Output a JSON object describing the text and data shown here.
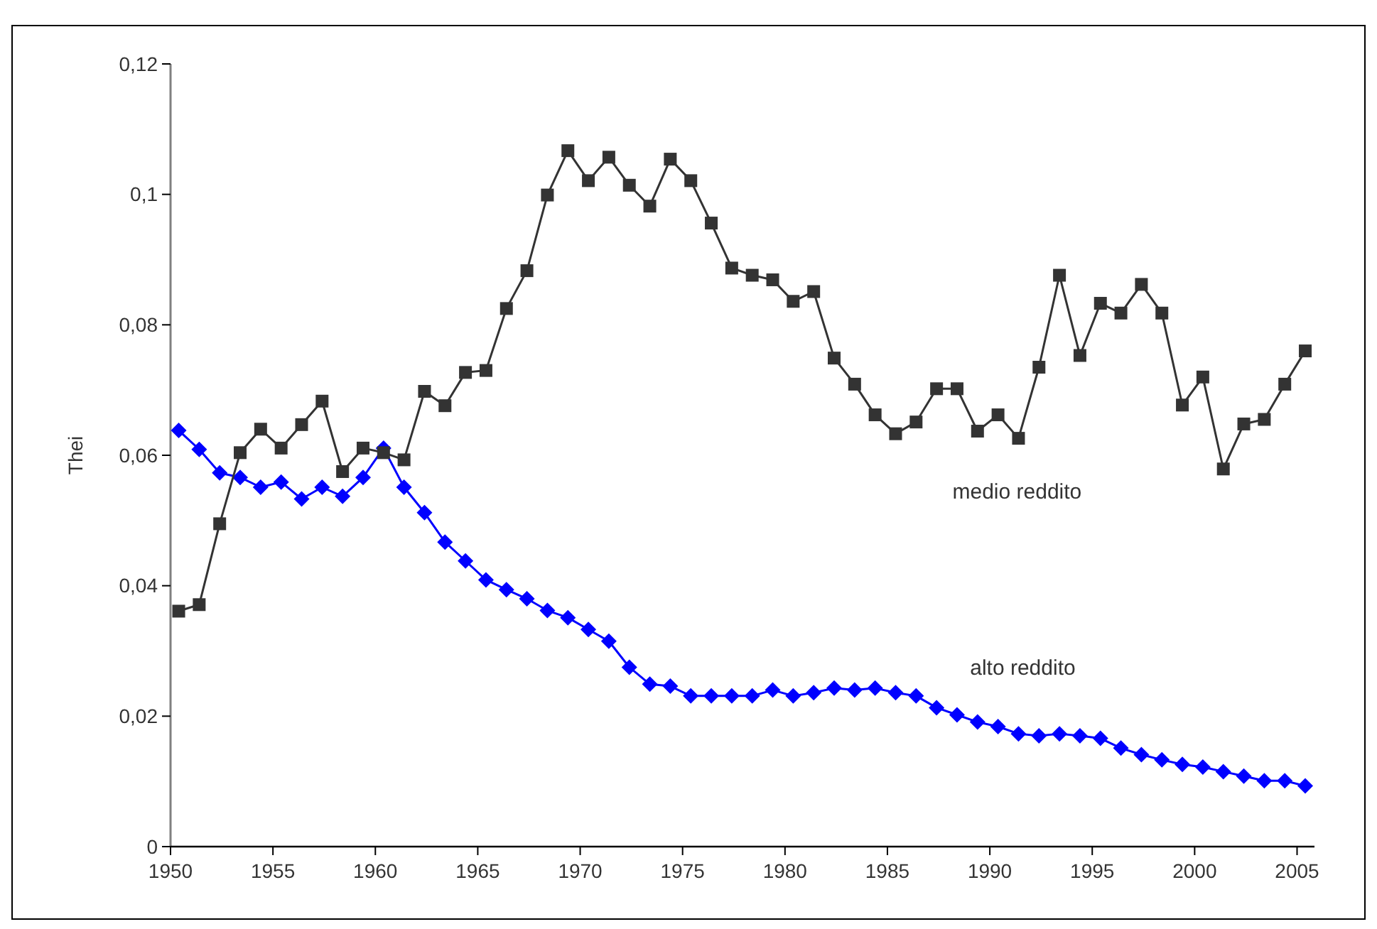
{
  "chart_data": {
    "type": "line",
    "ylabel": "Thei",
    "x": [
      1950,
      1951,
      1952,
      1953,
      1954,
      1955,
      1956,
      1957,
      1958,
      1959,
      1960,
      1961,
      1962,
      1963,
      1964,
      1965,
      1966,
      1967,
      1968,
      1969,
      1970,
      1971,
      1972,
      1973,
      1974,
      1975,
      1976,
      1977,
      1978,
      1979,
      1980,
      1981,
      1982,
      1983,
      1984,
      1985,
      1986,
      1987,
      1988,
      1989,
      1990,
      1991,
      1992,
      1993,
      1994,
      1995,
      1996,
      1997,
      1998,
      1999,
      2000,
      2001,
      2002,
      2003,
      2004,
      2005
    ],
    "xlim": [
      1949.6,
      2005.45
    ],
    "xticks": [
      {
        "value": 1949.6,
        "label": "1950"
      },
      {
        "value": 1954.6,
        "label": "1955"
      },
      {
        "value": 1959.6,
        "label": "1960"
      },
      {
        "value": 1964.6,
        "label": "1965"
      },
      {
        "value": 1969.6,
        "label": "1970"
      },
      {
        "value": 1974.6,
        "label": "1975"
      },
      {
        "value": 1979.6,
        "label": "1980"
      },
      {
        "value": 1984.6,
        "label": "1985"
      },
      {
        "value": 1989.6,
        "label": "1990"
      },
      {
        "value": 1994.6,
        "label": "1995"
      },
      {
        "value": 1999.6,
        "label": "2000"
      },
      {
        "value": 2004.6,
        "label": "2005"
      }
    ],
    "ylim": [
      0,
      0.12
    ],
    "yticks": [
      0,
      {
        "value": 0.02,
        "label": "0,02"
      },
      {
        "value": 0.04,
        "label": "0,04"
      },
      {
        "value": 0.06,
        "label": "0,06"
      },
      {
        "value": 0.08,
        "label": "0,08"
      },
      {
        "value": 0.1,
        "label": "0,1"
      },
      {
        "value": 0.12,
        "label": "0,12"
      }
    ],
    "grid": false,
    "series": [
      {
        "name": "medio reddito",
        "color": "#333333",
        "marker": "square",
        "values": [
          0.0361,
          0.0371,
          0.0495,
          0.0604,
          0.064,
          0.0611,
          0.0647,
          0.0683,
          0.0575,
          0.0611,
          0.0604,
          0.0593,
          0.0698,
          0.0676,
          0.0727,
          0.073,
          0.0825,
          0.0883,
          0.0999,
          0.1067,
          0.1021,
          0.1057,
          0.1014,
          0.0982,
          0.1054,
          0.1021,
          0.0956,
          0.0887,
          0.0876,
          0.0869,
          0.0836,
          0.0851,
          0.0749,
          0.0709,
          0.0662,
          0.0633,
          0.0651,
          0.0702,
          0.0702,
          0.0637,
          0.0662,
          0.0626,
          0.0735,
          0.0876,
          0.0753,
          0.0833,
          0.0818,
          0.0862,
          0.0818,
          0.0677,
          0.072,
          0.0579,
          0.0648,
          0.0655,
          0.0709,
          0.076
        ]
      },
      {
        "name": "alto reddito",
        "color": "#0000ff",
        "marker": "diamond",
        "values": [
          0.0638,
          0.0609,
          0.0573,
          0.0566,
          0.0551,
          0.0559,
          0.0533,
          0.0551,
          0.0537,
          0.0566,
          0.0611,
          0.0551,
          0.0512,
          0.0467,
          0.0438,
          0.0409,
          0.0394,
          0.038,
          0.0362,
          0.0351,
          0.0333,
          0.0315,
          0.0275,
          0.0249,
          0.0246,
          0.0231,
          0.0231,
          0.0231,
          0.0231,
          0.024,
          0.0231,
          0.0236,
          0.0243,
          0.024,
          0.0243,
          0.0236,
          0.0231,
          0.0213,
          0.0202,
          0.0191,
          0.0184,
          0.0173,
          0.017,
          0.0173,
          0.017,
          0.0166,
          0.0151,
          0.0141,
          0.0133,
          0.0126,
          0.0122,
          0.0115,
          0.0108,
          0.0101,
          0.0101,
          0.0093
        ]
      }
    ]
  }
}
